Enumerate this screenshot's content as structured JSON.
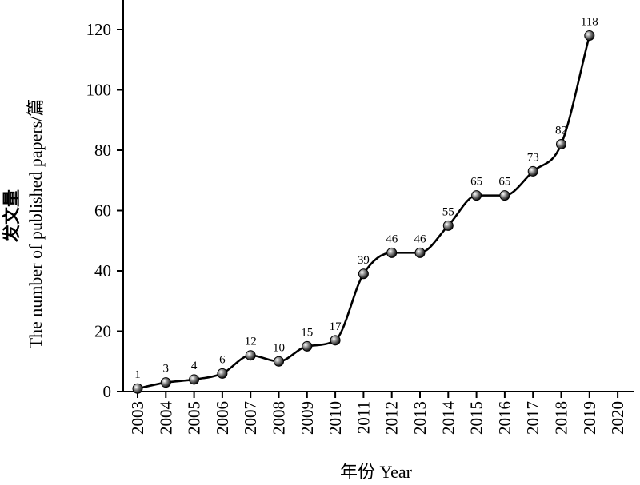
{
  "chart_data": {
    "type": "line",
    "x": [
      "2003",
      "2004",
      "2005",
      "2006",
      "2007",
      "2008",
      "2009",
      "2010",
      "2011",
      "2012",
      "2013",
      "2014",
      "2015",
      "2016",
      "2017",
      "2018",
      "2019",
      "2020"
    ],
    "series": [
      {
        "values": [
          1,
          3,
          4,
          6,
          12,
          10,
          15,
          17,
          39,
          46,
          46,
          55,
          65,
          65,
          73,
          82,
          118,
          null
        ]
      }
    ],
    "data_labels": [
      "1",
      "3",
      "4",
      "6",
      "12",
      "10",
      "15",
      "17",
      "39",
      "46",
      "46",
      "55",
      "65",
      "65",
      "73",
      "82",
      "118",
      ""
    ],
    "ylim": [
      0,
      130
    ],
    "yticks": [
      0,
      20,
      40,
      60,
      80,
      100,
      120
    ],
    "ylabel_zh": "发文量",
    "ylabel_en": "The number of published papers/篇",
    "xlabel": "年份 Year",
    "grid": false,
    "smooth": true,
    "marker": "sphere",
    "line_color": "#000000"
  }
}
